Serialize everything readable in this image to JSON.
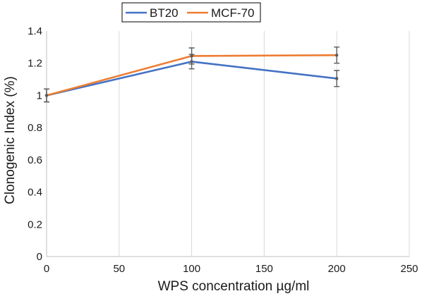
{
  "chart_data": {
    "type": "line",
    "xlabel": "WPS concentration µg/ml",
    "ylabel": "Clonogenic Index (%)",
    "xlim": [
      0,
      250
    ],
    "ylim": [
      0,
      1.4
    ],
    "x_ticks": [
      0,
      50,
      100,
      150,
      200,
      250
    ],
    "y_ticks": [
      0,
      0.2,
      0.4,
      0.6,
      0.8,
      1,
      1.2,
      1.4
    ],
    "x_tick_labels": [
      "0",
      "50",
      "100",
      "150",
      "200",
      "250"
    ],
    "y_tick_labels": [
      "0",
      "0.2",
      "0.4",
      "0.6",
      "0.8",
      "1",
      "1.2",
      "1.4"
    ],
    "grid": "vertical",
    "legend_position": "top",
    "series": [
      {
        "name": "BT20",
        "color": "#4472c4",
        "x": [
          0,
          100,
          200
        ],
        "y": [
          1.0,
          1.21,
          1.105
        ],
        "error": [
          0.04,
          0.045,
          0.05
        ]
      },
      {
        "name": "MCF-70",
        "color": "#ed7d31",
        "x": [
          0,
          100,
          200
        ],
        "y": [
          1.0,
          1.245,
          1.25
        ],
        "error": [
          0.04,
          0.05,
          0.05
        ]
      }
    ]
  }
}
